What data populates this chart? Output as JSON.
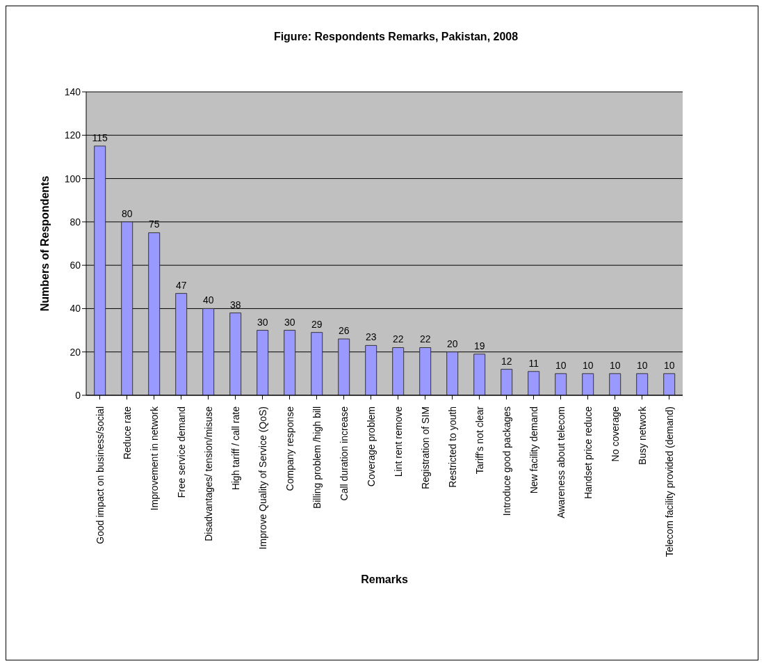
{
  "chart_data": {
    "type": "bar",
    "title": "Figure: Respondents Remarks, Pakistan, 2008",
    "xlabel": "Remarks",
    "ylabel": "Numbers of Respondents",
    "categories": [
      "Good impact on business/social",
      "Reduce rate",
      "Improvement in network",
      "Free service demand",
      "Disadvantages/ tension/misuse",
      "High tariff / call rate",
      "Improve Quality of Service (QoS)",
      "Company response",
      "Billing problem /high bill",
      "Call duration increase",
      "Coverage problem",
      "Lint rent remove",
      "Registration of SIM",
      "Restricted to youth",
      "Tariff's not clear",
      "Introduce good packages",
      "New  facility demand",
      "Awareness about telecom",
      "Handset price reduce",
      "No coverage",
      "Busy network",
      "Telecom facility provided (demand)"
    ],
    "values": [
      115,
      80,
      75,
      47,
      40,
      38,
      30,
      30,
      29,
      26,
      23,
      22,
      22,
      20,
      19,
      12,
      11,
      10,
      10,
      10,
      10,
      10
    ],
    "color": "#9999ff",
    "ylim": [
      0,
      140
    ],
    "yticks": [
      0,
      20,
      40,
      60,
      80,
      100,
      120,
      140
    ],
    "grid": "y",
    "data_labels": true
  }
}
